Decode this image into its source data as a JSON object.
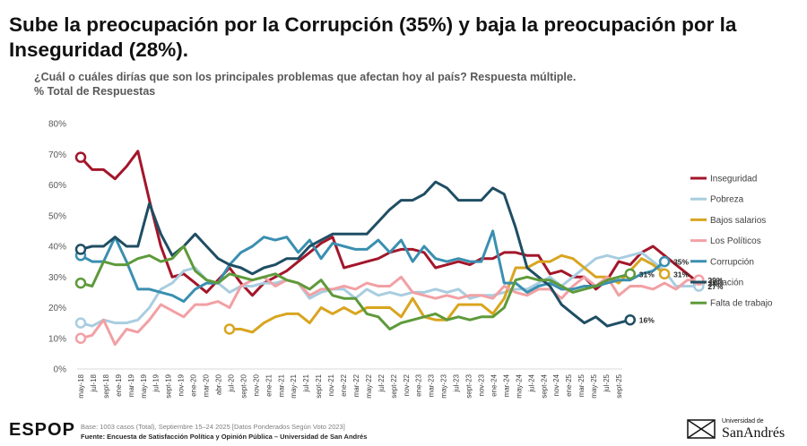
{
  "header": {
    "title": "Sube la preocupación por la Corrupción (35%) y baja la preocupación por la Inseguridad (28%).",
    "question": "¿Cuál o cuáles dirías que son los principales problemas que afectan hoy al país? Respuesta múltiple.",
    "base_label": "% Total de Respuestas"
  },
  "footer": {
    "base": "Base: 1003 casos (Total), Septiembre 15–24 2025 [Datos Ponderados Según Voto 2023]",
    "source": "Fuente: Encuesta de Satisfacción Política y Opinión Pública – Universidad de San Andrés",
    "logo_left": "ESPOP",
    "logo_right_small": "Universidad de",
    "logo_right_big": "SanAndrés"
  },
  "chart_data": {
    "type": "line",
    "title": "Sube la preocupación por la Corrupción (35%) y baja la preocupación por la Inseguridad (28%).",
    "ylabel": "% Total de Respuestas",
    "ylim": [
      0,
      80
    ],
    "yticks": [
      "0%",
      "10%",
      "20%",
      "30%",
      "40%",
      "50%",
      "60%",
      "70%",
      "80%"
    ],
    "x_count": 48,
    "x_labels": [
      "may-18",
      "jul-18",
      "sept-18",
      "ene-19",
      "mar-19",
      "may-19",
      "jul-19",
      "sept-19",
      "nov-19",
      "ene-20",
      "mar-20",
      "abr-20",
      "jul-20",
      "sept-20",
      "nov-20",
      "ene-21",
      "mar-21",
      "may-21",
      "jul-21",
      "sept-21",
      "nov-21",
      "ene-22",
      "mar-22",
      "may-22",
      "jul-22",
      "sept-22",
      "nov-22",
      "ene-23",
      "mar-23",
      "may-23",
      "jul-23",
      "sept-23",
      "nov-23",
      "ene-24",
      "mar-24",
      "may-24",
      "jul-24",
      "sept-24",
      "nov-24",
      "ene-25",
      "mar-25",
      "may-25",
      "jul-25",
      "sept-25"
    ],
    "x_label_positions": [
      0,
      1,
      3,
      4,
      5,
      6,
      7,
      8,
      9,
      10,
      11,
      12,
      13,
      14,
      15,
      16,
      17,
      18,
      19,
      20,
      21,
      22,
      23,
      24,
      25,
      26,
      27,
      28,
      29,
      30,
      31,
      32,
      33,
      34,
      35,
      36,
      37,
      38,
      39,
      40,
      41,
      42,
      43,
      44
    ],
    "legend_position": "right",
    "series": [
      {
        "name": "Inseguridad",
        "color": "#a3162a",
        "start": 0,
        "end_label": "28%",
        "values": [
          69,
          65,
          65,
          62,
          66,
          71,
          55,
          40,
          30,
          31,
          28,
          25,
          29,
          33,
          28,
          24,
          28,
          30,
          32,
          35,
          38,
          41,
          43,
          33,
          34,
          35,
          36,
          38,
          39,
          39,
          38,
          33,
          34,
          35,
          34,
          36,
          36,
          38,
          38,
          37,
          37,
          31,
          32,
          30,
          30,
          26,
          29,
          35,
          34,
          38,
          40,
          37,
          34,
          31,
          28
        ]
      },
      {
        "name": "Pobreza",
        "color": "#a8cde0",
        "start": 0,
        "end_label": "27%",
        "values": [
          15,
          14,
          16,
          15,
          15,
          16,
          20,
          26,
          28,
          32,
          33,
          29,
          28,
          25,
          27,
          27,
          28,
          28,
          29,
          28,
          23,
          25,
          26,
          26,
          23,
          26,
          24,
          25,
          24,
          25,
          25,
          26,
          25,
          26,
          23,
          24,
          24,
          25,
          26,
          26,
          28,
          30,
          27,
          30,
          33,
          36,
          37,
          36,
          37,
          38,
          35,
          32,
          27,
          27,
          27
        ]
      },
      {
        "name": "Bajos salarios",
        "color": "#d9a520",
        "start": 13,
        "end_label": "31%",
        "values": [
          13,
          13,
          12,
          15,
          17,
          18,
          18,
          15,
          20,
          18,
          20,
          18,
          20,
          20,
          20,
          17,
          23,
          17,
          16,
          16,
          21,
          21,
          21,
          18,
          23,
          33,
          33,
          35,
          35,
          37,
          36,
          33,
          30,
          30,
          28,
          32,
          36,
          34,
          31
        ]
      },
      {
        "name": "Los Políticos",
        "color": "#f2a0a4",
        "start": 0,
        "end_label": "29%",
        "values": [
          10,
          11,
          16,
          8,
          13,
          12,
          16,
          21,
          19,
          17,
          21,
          21,
          22,
          20,
          27,
          29,
          30,
          27,
          29,
          28,
          24,
          26,
          26,
          27,
          26,
          28,
          27,
          27,
          30,
          25,
          24,
          23,
          24,
          23,
          24,
          24,
          23,
          27,
          25,
          24,
          26,
          26,
          23,
          27,
          30,
          27,
          30,
          24,
          27,
          27,
          26,
          28,
          26,
          29,
          29
        ]
      },
      {
        "name": "Corrupción",
        "color": "#3a8fb0",
        "start": 0,
        "end_label": "35%",
        "values": [
          37,
          35,
          35,
          43,
          35,
          26,
          26,
          25,
          24,
          22,
          26,
          28,
          28,
          34,
          38,
          40,
          43,
          42,
          43,
          38,
          42,
          36,
          41,
          40,
          39,
          39,
          42,
          38,
          42,
          35,
          40,
          36,
          35,
          36,
          35,
          35,
          45,
          28,
          28,
          25,
          27,
          28,
          26,
          26,
          27,
          27,
          28,
          29,
          29,
          31,
          32,
          35
        ]
      },
      {
        "name": "Inflación",
        "color": "#1f4e63",
        "start": 0,
        "end_label": "16%",
        "values": [
          39,
          40,
          40,
          43,
          40,
          40,
          54,
          44,
          37,
          40,
          44,
          40,
          36,
          34,
          33,
          31,
          33,
          34,
          36,
          36,
          40,
          42,
          44,
          44,
          44,
          44,
          48,
          52,
          55,
          55,
          57,
          61,
          59,
          55,
          55,
          55,
          59,
          57,
          46,
          33,
          30,
          27,
          21,
          18,
          15,
          17,
          14,
          15,
          16
        ]
      },
      {
        "name": "Falta de trabajo",
        "color": "#5e9a3a",
        "start": 0,
        "end_label": "31%",
        "values": [
          28,
          27,
          35,
          34,
          34,
          36,
          37,
          35,
          36,
          40,
          32,
          29,
          28,
          31,
          30,
          29,
          30,
          31,
          29,
          28,
          26,
          29,
          24,
          23,
          23,
          18,
          17,
          13,
          15,
          16,
          17,
          18,
          16,
          17,
          16,
          17,
          17,
          20,
          29,
          30,
          29,
          29,
          27,
          25,
          26,
          27,
          29,
          30,
          31
        ]
      }
    ]
  }
}
